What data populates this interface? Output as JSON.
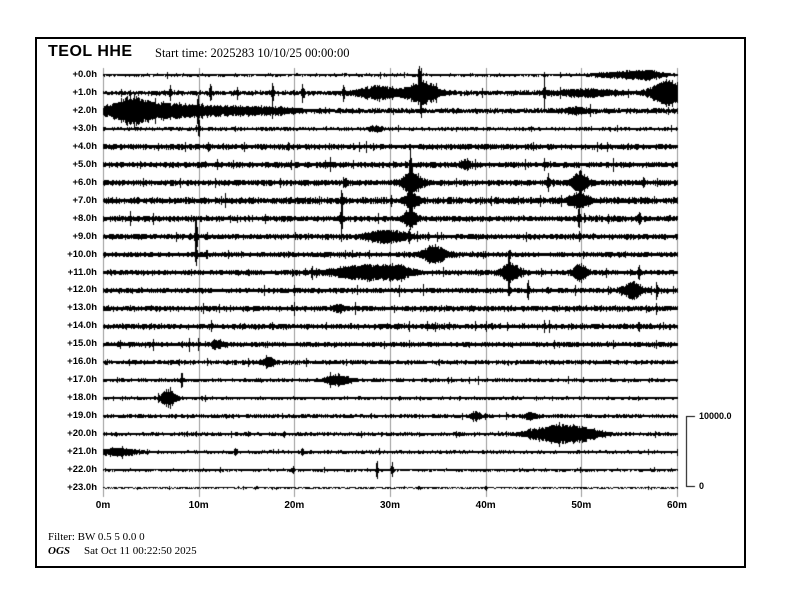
{
  "header": {
    "station": "TEOL HHE",
    "start_time_label": "Start time: 2025283 10/10/25 00:00:00"
  },
  "footer": {
    "filter_label": "Filter: BW 0.5 5 0.0 0",
    "agency": "OGS",
    "generated_label": "Sat Oct 11 00:22:50 2025"
  },
  "scale_bar": {
    "max_label": "10000.0",
    "min_label": "0"
  },
  "colors": {
    "trace": "#000000",
    "gridline": "#999999",
    "frame": "#000000",
    "background": "#ffffff"
  },
  "chart_data": {
    "type": "line",
    "subtype": "helicorder-seismogram",
    "title": "TEOL HHE",
    "start_time": "2025283 10/10/25 00:00:00",
    "x_minutes_range": [
      0,
      60
    ],
    "x_tick_minutes": [
      0,
      10,
      20,
      30,
      40,
      50,
      60
    ],
    "x_tick_labels": [
      "0m",
      "10m",
      "20m",
      "30m",
      "40m",
      "50m",
      "60m"
    ],
    "minutes_per_row": 60,
    "amplitude_scale": {
      "max": 10000.0,
      "min": 0
    },
    "grid": true,
    "rows": [
      {
        "label": "+0.0h",
        "base": 1.6,
        "events": [
          {
            "m": 33.0,
            "a": 9,
            "w": 0.08
          },
          {
            "m": 54.8,
            "a": 3.2,
            "w": 2.2
          },
          {
            "m": 57.0,
            "a": 2.5,
            "w": 1.0
          }
        ]
      },
      {
        "label": "+1.0h",
        "base": 2.6,
        "events": [
          {
            "m": 7.0,
            "a": 7,
            "w": 0.08
          },
          {
            "m": 11.2,
            "a": 11,
            "w": 0.08
          },
          {
            "m": 14.0,
            "a": 5,
            "w": 0.08
          },
          {
            "m": 17.7,
            "a": 10,
            "w": 0.08
          },
          {
            "m": 20.8,
            "a": 7,
            "w": 0.08
          },
          {
            "m": 25.1,
            "a": 8,
            "w": 0.08
          },
          {
            "m": 28.7,
            "a": 7,
            "w": 1.4
          },
          {
            "m": 33.3,
            "a": 12,
            "w": 1.1
          },
          {
            "m": 33.2,
            "a": 26,
            "w": 0.07
          },
          {
            "m": 46.1,
            "a": 21,
            "w": 0.06
          },
          {
            "m": 50.5,
            "a": 3,
            "w": 2.5
          },
          {
            "m": 58.9,
            "a": 14,
            "w": 1.1
          }
        ]
      },
      {
        "label": "+2.0h",
        "base": 2.8,
        "events": [
          {
            "m": 2.8,
            "a": 12,
            "w": 1.6
          },
          {
            "m": 6.5,
            "a": 6,
            "w": 2.5
          },
          {
            "m": 9.9,
            "a": 16,
            "w": 0.07
          },
          {
            "m": 12.0,
            "a": 3.5,
            "w": 3.0
          },
          {
            "m": 17.5,
            "a": 2.5,
            "w": 2.0
          },
          {
            "m": 49.4,
            "a": 2.5,
            "w": 0.8
          }
        ]
      },
      {
        "label": "+3.0h",
        "base": 2.0,
        "events": [
          {
            "m": 10.0,
            "a": 13,
            "w": 0.07
          },
          {
            "m": 28.4,
            "a": 2.5,
            "w": 0.5
          }
        ]
      },
      {
        "label": "+4.0h",
        "base": 3.0,
        "events": [
          {
            "m": 11.0,
            "a": 3,
            "w": 0.1
          },
          {
            "m": 19.3,
            "a": 4,
            "w": 0.1
          }
        ]
      },
      {
        "label": "+5.0h",
        "base": 3.2,
        "events": [
          {
            "m": 37.9,
            "a": 3.5,
            "w": 0.4
          }
        ]
      },
      {
        "label": "+6.0h",
        "base": 3.2,
        "events": [
          {
            "m": 25.3,
            "a": 4,
            "w": 0.1
          },
          {
            "m": 32.1,
            "a": 28,
            "w": 0.09
          },
          {
            "m": 32.3,
            "a": 11,
            "w": 0.7
          },
          {
            "m": 46.5,
            "a": 7,
            "w": 0.09
          },
          {
            "m": 49.8,
            "a": 11,
            "w": 0.55
          },
          {
            "m": 56.5,
            "a": 4,
            "w": 0.1
          }
        ]
      },
      {
        "label": "+7.0h",
        "base": 3.6,
        "events": [
          {
            "m": 24.9,
            "a": 11,
            "w": 0.08
          },
          {
            "m": 32.1,
            "a": 18,
            "w": 0.08
          },
          {
            "m": 32.2,
            "a": 8,
            "w": 0.5
          },
          {
            "m": 49.7,
            "a": 7,
            "w": 0.7
          }
        ]
      },
      {
        "label": "+8.0h",
        "base": 3.2,
        "events": [
          {
            "m": 24.9,
            "a": 24,
            "w": 0.07
          },
          {
            "m": 32.1,
            "a": 9,
            "w": 0.5
          },
          {
            "m": 49.7,
            "a": 9,
            "w": 0.1
          },
          {
            "m": 56.0,
            "a": 5,
            "w": 0.1
          }
        ]
      },
      {
        "label": "+9.0h",
        "base": 3.0,
        "events": [
          {
            "m": 9.7,
            "a": 28,
            "w": 0.08
          },
          {
            "m": 29.5,
            "a": 6,
            "w": 1.4
          },
          {
            "m": 32.0,
            "a": 5,
            "w": 0.1
          },
          {
            "m": 49.8,
            "a": 4,
            "w": 0.1
          }
        ]
      },
      {
        "label": "+10.0h",
        "base": 2.8,
        "events": [
          {
            "m": 9.7,
            "a": 11,
            "w": 0.07
          },
          {
            "m": 34.6,
            "a": 8,
            "w": 0.9
          },
          {
            "m": 42.5,
            "a": 4,
            "w": 0.1
          }
        ]
      },
      {
        "label": "+11.0h",
        "base": 2.8,
        "events": [
          {
            "m": 21.8,
            "a": 4,
            "w": 0.1
          },
          {
            "m": 27.0,
            "a": 7,
            "w": 2.2
          },
          {
            "m": 30.5,
            "a": 6,
            "w": 1.2
          },
          {
            "m": 42.4,
            "a": 24,
            "w": 0.08
          },
          {
            "m": 42.6,
            "a": 9,
            "w": 0.7
          },
          {
            "m": 49.8,
            "a": 8,
            "w": 0.5
          },
          {
            "m": 56.0,
            "a": 7,
            "w": 0.09
          }
        ]
      },
      {
        "label": "+12.0h",
        "base": 2.8,
        "events": [
          {
            "m": 42.4,
            "a": 7,
            "w": 0.08
          },
          {
            "m": 44.4,
            "a": 11,
            "w": 0.07
          },
          {
            "m": 55.3,
            "a": 8,
            "w": 0.7
          },
          {
            "m": 57.9,
            "a": 4,
            "w": 0.1
          }
        ]
      },
      {
        "label": "+13.0h",
        "base": 3.0,
        "events": [
          {
            "m": 24.7,
            "a": 3.5,
            "w": 0.4
          }
        ]
      },
      {
        "label": "+14.0h",
        "base": 3.0,
        "events": [
          {
            "m": 56.0,
            "a": 5,
            "w": 0.08
          }
        ]
      },
      {
        "label": "+15.0h",
        "base": 2.8,
        "events": [
          {
            "m": 11.9,
            "a": 3.5,
            "w": 0.4
          }
        ]
      },
      {
        "label": "+16.0h",
        "base": 2.4,
        "events": [
          {
            "m": 17.3,
            "a": 4.5,
            "w": 0.45
          }
        ]
      },
      {
        "label": "+17.0h",
        "base": 2.0,
        "events": [
          {
            "m": 8.2,
            "a": 11,
            "w": 0.07
          },
          {
            "m": 24.5,
            "a": 5.5,
            "w": 0.9
          }
        ]
      },
      {
        "label": "+18.0h",
        "base": 1.8,
        "events": [
          {
            "m": 6.8,
            "a": 9,
            "w": 0.55
          }
        ]
      },
      {
        "label": "+19.0h",
        "base": 2.2,
        "events": [
          {
            "m": 38.9,
            "a": 4,
            "w": 0.4
          },
          {
            "m": 44.7,
            "a": 4,
            "w": 0.4
          }
        ]
      },
      {
        "label": "+20.0h",
        "base": 2.0,
        "events": [
          {
            "m": 18.9,
            "a": 3.5,
            "w": 0.1
          },
          {
            "m": 46.0,
            "a": 4.5,
            "w": 1.5
          },
          {
            "m": 49.0,
            "a": 8.5,
            "w": 1.9
          }
        ]
      },
      {
        "label": "+21.0h",
        "base": 1.8,
        "events": [
          {
            "m": 1.5,
            "a": 3.5,
            "w": 1.5
          },
          {
            "m": 13.8,
            "a": 4.5,
            "w": 0.09
          },
          {
            "m": 20.8,
            "a": 3.5,
            "w": 0.09
          }
        ]
      },
      {
        "label": "+22.0h",
        "base": 1.6,
        "events": [
          {
            "m": 19.8,
            "a": 3.5,
            "w": 0.09
          },
          {
            "m": 28.6,
            "a": 11,
            "w": 0.07
          },
          {
            "m": 30.2,
            "a": 8,
            "w": 0.07
          }
        ]
      },
      {
        "label": "+23.0h",
        "base": 1.0,
        "events": [
          {
            "m": 16.0,
            "a": 2,
            "w": 0.1
          },
          {
            "m": 33.0,
            "a": 2.2,
            "w": 0.1
          },
          {
            "m": 40.0,
            "a": 2,
            "w": 0.1
          }
        ]
      }
    ]
  }
}
